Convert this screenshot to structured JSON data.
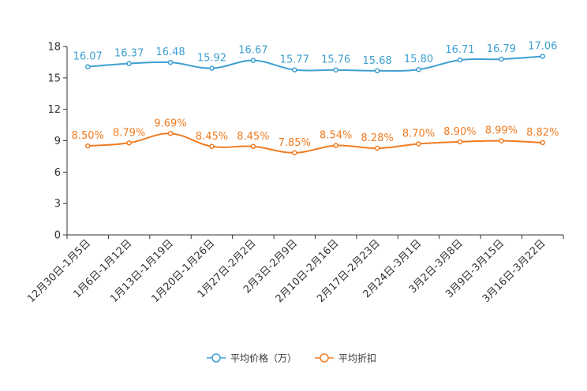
{
  "chart_data": {
    "type": "line",
    "categories": [
      "12月30日-1月5日",
      "1月6日-1月12日",
      "1月13日-1月19日",
      "1月20日-1月26日",
      "1月27日-2月2日",
      "2月3日-2月9日",
      "2月10日-2月16日",
      "2月17日-2月23日",
      "2月24日-3月1日",
      "3月2日-3月8日",
      "3月9日-3月15日",
      "3月16日-3月22日"
    ],
    "series": [
      {
        "name": "平均价格（万）",
        "values": [
          16.07,
          16.37,
          16.48,
          15.92,
          16.67,
          15.77,
          15.76,
          15.68,
          15.8,
          16.71,
          16.79,
          17.06
        ],
        "labels": [
          "16.07",
          "16.37",
          "16.48",
          "15.92",
          "16.67",
          "15.77",
          "15.76",
          "15.68",
          "15.80",
          "16.71",
          "16.79",
          "17.06"
        ],
        "color": "#3d9fd0"
      },
      {
        "name": "平均折扣",
        "values": [
          8.5,
          8.79,
          9.69,
          8.45,
          8.45,
          7.85,
          8.54,
          8.28,
          8.7,
          8.9,
          8.99,
          8.82
        ],
        "labels": [
          "8.50%",
          "8.79%",
          "9.69%",
          "8.45%",
          "8.45%",
          "7.85%",
          "8.54%",
          "8.28%",
          "8.70%",
          "8.90%",
          "8.99%",
          "8.82%"
        ],
        "color": "#f07c22"
      }
    ],
    "yticks": [
      "0",
      "3",
      "6",
      "9",
      "12",
      "15",
      "18"
    ],
    "ylim": [
      0,
      18
    ],
    "title": "",
    "xlabel": "",
    "ylabel": "",
    "legend_position": "bottom-center"
  }
}
